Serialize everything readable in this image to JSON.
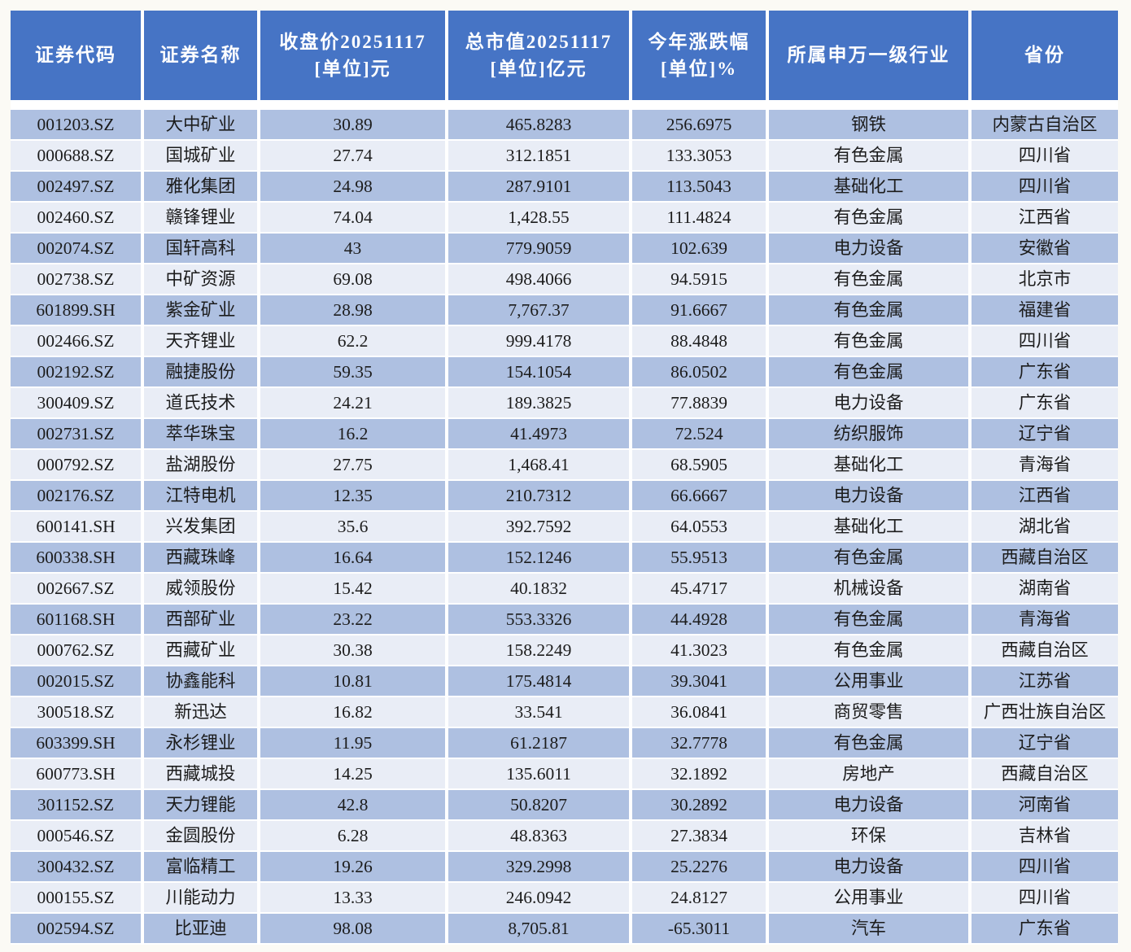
{
  "chart_data": {
    "type": "table",
    "columns": [
      {
        "key": "code",
        "label": "证券代码"
      },
      {
        "key": "name",
        "label": "证券名称"
      },
      {
        "key": "close",
        "label": "收盘价20251117\n[单位]元"
      },
      {
        "key": "mcap",
        "label": "总市值20251117\n[单位]亿元"
      },
      {
        "key": "pct",
        "label": "今年涨跌幅\n[单位]%"
      },
      {
        "key": "industry",
        "label": "所属申万一级行业"
      },
      {
        "key": "province",
        "label": "省份"
      }
    ],
    "rows": [
      [
        "001203.SZ",
        "大中矿业",
        "30.89",
        "465.8283",
        "256.6975",
        "钢铁",
        "内蒙古自治区"
      ],
      [
        "000688.SZ",
        "国城矿业",
        "27.74",
        "312.1851",
        "133.3053",
        "有色金属",
        "四川省"
      ],
      [
        "002497.SZ",
        "雅化集团",
        "24.98",
        "287.9101",
        "113.5043",
        "基础化工",
        "四川省"
      ],
      [
        "002460.SZ",
        "赣锋锂业",
        "74.04",
        "1,428.55",
        "111.4824",
        "有色金属",
        "江西省"
      ],
      [
        "002074.SZ",
        "国轩高科",
        "43",
        "779.9059",
        "102.639",
        "电力设备",
        "安徽省"
      ],
      [
        "002738.SZ",
        "中矿资源",
        "69.08",
        "498.4066",
        "94.5915",
        "有色金属",
        "北京市"
      ],
      [
        "601899.SH",
        "紫金矿业",
        "28.98",
        "7,767.37",
        "91.6667",
        "有色金属",
        "福建省"
      ],
      [
        "002466.SZ",
        "天齐锂业",
        "62.2",
        "999.4178",
        "88.4848",
        "有色金属",
        "四川省"
      ],
      [
        "002192.SZ",
        "融捷股份",
        "59.35",
        "154.1054",
        "86.0502",
        "有色金属",
        "广东省"
      ],
      [
        "300409.SZ",
        "道氏技术",
        "24.21",
        "189.3825",
        "77.8839",
        "电力设备",
        "广东省"
      ],
      [
        "002731.SZ",
        "萃华珠宝",
        "16.2",
        "41.4973",
        "72.524",
        "纺织服饰",
        "辽宁省"
      ],
      [
        "000792.SZ",
        "盐湖股份",
        "27.75",
        "1,468.41",
        "68.5905",
        "基础化工",
        "青海省"
      ],
      [
        "002176.SZ",
        "江特电机",
        "12.35",
        "210.7312",
        "66.6667",
        "电力设备",
        "江西省"
      ],
      [
        "600141.SH",
        "兴发集团",
        "35.6",
        "392.7592",
        "64.0553",
        "基础化工",
        "湖北省"
      ],
      [
        "600338.SH",
        "西藏珠峰",
        "16.64",
        "152.1246",
        "55.9513",
        "有色金属",
        "西藏自治区"
      ],
      [
        "002667.SZ",
        "威领股份",
        "15.42",
        "40.1832",
        "45.4717",
        "机械设备",
        "湖南省"
      ],
      [
        "601168.SH",
        "西部矿业",
        "23.22",
        "553.3326",
        "44.4928",
        "有色金属",
        "青海省"
      ],
      [
        "000762.SZ",
        "西藏矿业",
        "30.38",
        "158.2249",
        "41.3023",
        "有色金属",
        "西藏自治区"
      ],
      [
        "002015.SZ",
        "协鑫能科",
        "10.81",
        "175.4814",
        "39.3041",
        "公用事业",
        "江苏省"
      ],
      [
        "300518.SZ",
        "新迅达",
        "16.82",
        "33.541",
        "36.0841",
        "商贸零售",
        "广西壮族自治区"
      ],
      [
        "603399.SH",
        "永杉锂业",
        "11.95",
        "61.2187",
        "32.7778",
        "有色金属",
        "辽宁省"
      ],
      [
        "600773.SH",
        "西藏城投",
        "14.25",
        "135.6011",
        "32.1892",
        "房地产",
        "西藏自治区"
      ],
      [
        "301152.SZ",
        "天力锂能",
        "42.8",
        "50.8207",
        "30.2892",
        "电力设备",
        "河南省"
      ],
      [
        "000546.SZ",
        "金圆股份",
        "6.28",
        "48.8363",
        "27.3834",
        "环保",
        "吉林省"
      ],
      [
        "300432.SZ",
        "富临精工",
        "19.26",
        "329.2998",
        "25.2276",
        "电力设备",
        "四川省"
      ],
      [
        "000155.SZ",
        "川能动力",
        "13.33",
        "246.0942",
        "24.8127",
        "公用事业",
        "四川省"
      ],
      [
        "002594.SZ",
        "比亚迪",
        "98.08",
        "8,705.81",
        "-65.3011",
        "汽车",
        "广东省"
      ]
    ]
  },
  "colors": {
    "header_bg": "#4674c5",
    "header_text": "#ffffff",
    "row_odd_bg": "#aec0e1",
    "row_even_bg": "#e9edf6",
    "body_text": "#1c1c1c",
    "page_bg": "#fbfaf5",
    "cell_gap": "#ffffff"
  }
}
